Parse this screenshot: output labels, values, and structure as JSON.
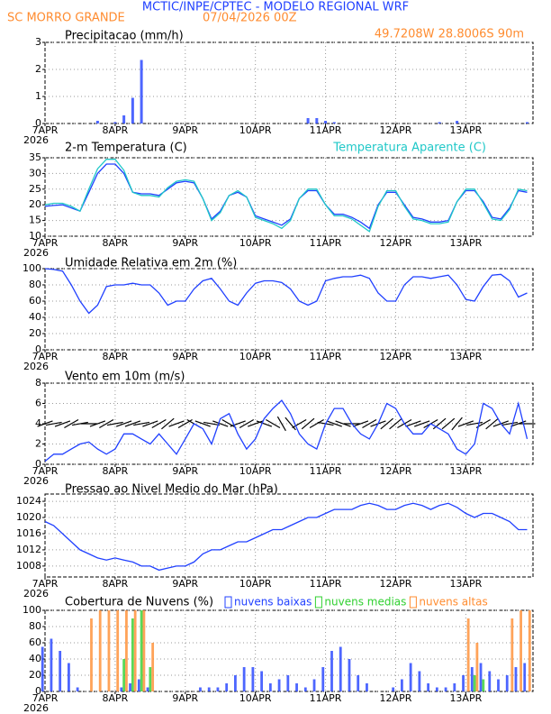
{
  "header": {
    "title": "MCTIC/INPE/CPTEC - MODELO REGIONAL WRF",
    "location": "SC MORRO GRANDE",
    "run": "07/04/2026 00Z",
    "coords": "49.7208W 28.8006S 90m"
  },
  "chart_data": [
    {
      "type": "bar",
      "title": "Precipitacao (mm/h)",
      "x_year": "2026",
      "x": [
        0,
        3,
        6,
        9,
        12,
        15,
        18,
        21,
        24,
        27,
        30,
        33,
        36,
        39,
        42,
        45,
        48,
        51,
        54,
        57,
        60,
        63,
        66,
        69,
        72,
        75,
        78,
        81,
        84,
        87,
        90,
        93,
        96,
        99,
        102,
        105,
        108,
        111,
        114,
        117,
        120,
        123,
        126,
        129,
        132,
        135,
        138,
        141,
        144,
        147,
        150,
        153,
        156,
        159,
        162,
        165
      ],
      "xlim": [
        0,
        167
      ],
      "xticks": [
        {
          "value": 0,
          "label": "7APR"
        },
        {
          "value": 24,
          "label": "8APR"
        },
        {
          "value": 48,
          "label": "9APR"
        },
        {
          "value": 72,
          "label": "10APR"
        },
        {
          "value": 96,
          "label": "11APR"
        },
        {
          "value": 120,
          "label": "12APR"
        },
        {
          "value": 144,
          "label": "13APR"
        }
      ],
      "ylim": [
        0,
        3
      ],
      "yticks": [
        0,
        1,
        2,
        3
      ],
      "grid": true,
      "series": [
        {
          "color": "#2040ff",
          "values": [
            0,
            0,
            0,
            0,
            0,
            0,
            0.1,
            0,
            0.05,
            0.3,
            0.95,
            2.35,
            0,
            0,
            0,
            0,
            0,
            0,
            0,
            0,
            0,
            0,
            0,
            0,
            0,
            0,
            0,
            0,
            0,
            0,
            0.2,
            0.2,
            0.1,
            0.05,
            0,
            0,
            0,
            0,
            0,
            0,
            0,
            0,
            0,
            0,
            0,
            0.05,
            0,
            0.1,
            0,
            0,
            0,
            0,
            0,
            0,
            0,
            0.05
          ]
        }
      ]
    },
    {
      "type": "line",
      "title": "2-m Temperatura (C)",
      "x_year": "2026",
      "x": [
        0,
        3,
        6,
        9,
        12,
        15,
        18,
        21,
        24,
        27,
        30,
        33,
        36,
        39,
        42,
        45,
        48,
        51,
        54,
        57,
        60,
        63,
        66,
        69,
        72,
        75,
        78,
        81,
        84,
        87,
        90,
        93,
        96,
        99,
        102,
        105,
        108,
        111,
        114,
        117,
        120,
        123,
        126,
        129,
        132,
        135,
        138,
        141,
        144,
        147,
        150,
        153,
        156,
        159,
        162,
        165
      ],
      "xlim": [
        0,
        167
      ],
      "xticks": [
        {
          "value": 0,
          "label": "7APR"
        },
        {
          "value": 24,
          "label": "8APR"
        },
        {
          "value": 48,
          "label": "9APR"
        },
        {
          "value": 72,
          "label": "10APR"
        },
        {
          "value": 96,
          "label": "11APR"
        },
        {
          "value": 120,
          "label": "12APR"
        },
        {
          "value": 144,
          "label": "13APR"
        }
      ],
      "ylim": [
        10,
        35
      ],
      "yticks": [
        10,
        15,
        20,
        25,
        30,
        35
      ],
      "grid": true,
      "series": [
        {
          "color": "#2040ff",
          "values": [
            19.5,
            19.8,
            20,
            19,
            18,
            24,
            30,
            33,
            33,
            30,
            24,
            23.5,
            23.5,
            23,
            25,
            27,
            27.5,
            27,
            22,
            15.5,
            18,
            23,
            24,
            22.5,
            16.5,
            15.5,
            14.5,
            13.5,
            15.5,
            22,
            24.5,
            24.5,
            20,
            17,
            17,
            16,
            14.5,
            12.5,
            20,
            24,
            24,
            20,
            16,
            15.5,
            14.5,
            14.5,
            15,
            21,
            24.5,
            24.5,
            21,
            16,
            15.5,
            19,
            24.5,
            24
          ]
        },
        {
          "name": "Temperatura Aparente (C)",
          "color": "#20c8c8",
          "values": [
            20,
            20.5,
            20.5,
            19.5,
            18,
            25,
            31.5,
            34.5,
            34.5,
            31,
            24,
            23,
            23,
            22.5,
            25.5,
            27.5,
            28,
            27.5,
            22,
            15,
            17.5,
            23,
            24.5,
            22.5,
            16,
            15,
            14,
            12.5,
            15,
            22,
            25,
            25,
            20,
            16.5,
            16.5,
            15.5,
            13.5,
            11.5,
            19.5,
            24.5,
            24.5,
            19.5,
            15.5,
            15,
            14,
            14,
            14.5,
            21,
            25,
            25,
            20.5,
            15.5,
            15,
            18.5,
            25,
            24.5
          ]
        }
      ]
    },
    {
      "type": "line",
      "title": "Umidade Relativa em 2m (%)",
      "x_year": "2026",
      "x": [
        0,
        3,
        6,
        9,
        12,
        15,
        18,
        21,
        24,
        27,
        30,
        33,
        36,
        39,
        42,
        45,
        48,
        51,
        54,
        57,
        60,
        63,
        66,
        69,
        72,
        75,
        78,
        81,
        84,
        87,
        90,
        93,
        96,
        99,
        102,
        105,
        108,
        111,
        114,
        117,
        120,
        123,
        126,
        129,
        132,
        135,
        138,
        141,
        144,
        147,
        150,
        153,
        156,
        159,
        162,
        165
      ],
      "xlim": [
        0,
        167
      ],
      "xticks": [
        {
          "value": 0,
          "label": "7APR"
        },
        {
          "value": 24,
          "label": "8APR"
        },
        {
          "value": 48,
          "label": "9APR"
        },
        {
          "value": 72,
          "label": "10APR"
        },
        {
          "value": 96,
          "label": "11APR"
        },
        {
          "value": 120,
          "label": "12APR"
        },
        {
          "value": 144,
          "label": "13APR"
        }
      ],
      "ylim": [
        0,
        100
      ],
      "yticks": [
        0,
        20,
        40,
        60,
        80,
        100
      ],
      "grid": true,
      "series": [
        {
          "color": "#2040ff",
          "values": [
            100,
            99,
            97,
            80,
            60,
            45,
            55,
            78,
            80,
            80,
            82,
            80,
            80,
            70,
            55,
            60,
            60,
            75,
            85,
            88,
            75,
            60,
            55,
            70,
            82,
            85,
            85,
            83,
            75,
            60,
            55,
            60,
            85,
            88,
            90,
            90,
            92,
            88,
            70,
            60,
            60,
            80,
            90,
            90,
            88,
            90,
            92,
            80,
            62,
            60,
            78,
            92,
            93,
            85,
            65,
            70
          ]
        }
      ]
    },
    {
      "type": "wind",
      "title": "Vento em 10m (m/s)",
      "x_year": "2026",
      "x": [
        0,
        3,
        6,
        9,
        12,
        15,
        18,
        21,
        24,
        27,
        30,
        33,
        36,
        39,
        42,
        45,
        48,
        51,
        54,
        57,
        60,
        63,
        66,
        69,
        72,
        75,
        78,
        81,
        84,
        87,
        90,
        93,
        96,
        99,
        102,
        105,
        108,
        111,
        114,
        117,
        120,
        123,
        126,
        129,
        132,
        135,
        138,
        141,
        144,
        147,
        150,
        153,
        156,
        159,
        162,
        165
      ],
      "xlim": [
        0,
        167
      ],
      "xticks": [
        {
          "value": 0,
          "label": "7APR"
        },
        {
          "value": 24,
          "label": "8APR"
        },
        {
          "value": 48,
          "label": "9APR"
        },
        {
          "value": 72,
          "label": "10APR"
        },
        {
          "value": 96,
          "label": "11APR"
        },
        {
          "value": 120,
          "label": "12APR"
        },
        {
          "value": 144,
          "label": "13APR"
        }
      ],
      "ylim": [
        0,
        8
      ],
      "yticks": [
        0,
        2,
        4,
        6,
        8
      ],
      "grid": true,
      "arrow_level": 4,
      "directions": [
        200,
        190,
        200,
        210,
        190,
        180,
        200,
        210,
        190,
        200,
        200,
        190,
        200,
        210,
        220,
        200,
        210,
        150,
        160,
        170,
        160,
        150,
        200,
        210,
        200,
        160,
        150,
        120,
        130,
        210,
        220,
        210,
        170,
        160,
        160,
        180,
        200,
        210,
        200,
        220,
        220,
        210,
        200,
        200,
        210,
        220,
        220,
        230,
        200,
        190,
        210,
        220,
        200,
        190,
        200,
        180
      ],
      "series": [
        {
          "color": "#2040ff",
          "values": [
            0.3,
            1,
            1,
            1.5,
            2,
            2.2,
            1.5,
            1,
            1.5,
            3,
            3,
            2.5,
            2,
            3,
            2,
            1,
            2.5,
            4,
            3.5,
            2,
            4.5,
            5,
            3,
            1.5,
            2.5,
            4.5,
            5.5,
            6.3,
            5,
            3,
            2,
            1.5,
            4,
            5.5,
            5.5,
            4,
            3,
            2.5,
            4,
            6,
            5.5,
            4,
            3,
            3,
            4,
            3.5,
            3,
            1.5,
            1,
            2,
            6,
            5.5,
            4,
            3,
            6,
            2.5
          ]
        }
      ]
    },
    {
      "type": "line",
      "title": "Pressao ao Nivel Medio do Mar (hPa)",
      "x_year": "2026",
      "x": [
        0,
        3,
        6,
        9,
        12,
        15,
        18,
        21,
        24,
        27,
        30,
        33,
        36,
        39,
        42,
        45,
        48,
        51,
        54,
        57,
        60,
        63,
        66,
        69,
        72,
        75,
        78,
        81,
        84,
        87,
        90,
        93,
        96,
        99,
        102,
        105,
        108,
        111,
        114,
        117,
        120,
        123,
        126,
        129,
        132,
        135,
        138,
        141,
        144,
        147,
        150,
        153,
        156,
        159,
        162,
        165
      ],
      "xlim": [
        0,
        167
      ],
      "xticks": [
        {
          "value": 0,
          "label": "7APR"
        },
        {
          "value": 24,
          "label": "8APR"
        },
        {
          "value": 48,
          "label": "9APR"
        },
        {
          "value": 72,
          "label": "10APR"
        },
        {
          "value": 96,
          "label": "11APR"
        },
        {
          "value": 120,
          "label": "12APR"
        },
        {
          "value": 144,
          "label": "13APR"
        }
      ],
      "ylim": [
        1005.3,
        1025.8
      ],
      "yticks": [
        1008,
        1012,
        1016,
        1020,
        1024
      ],
      "grid": true,
      "series": [
        {
          "color": "#2040ff",
          "values": [
            1019,
            1018,
            1016,
            1014,
            1012,
            1011,
            1010,
            1009.5,
            1010,
            1009.5,
            1009,
            1008,
            1008,
            1007,
            1007.5,
            1008,
            1008,
            1009,
            1011,
            1012,
            1012,
            1013,
            1014,
            1014,
            1015,
            1016,
            1017,
            1017,
            1018,
            1019,
            1020,
            1020,
            1021,
            1022,
            1022,
            1022,
            1023,
            1023.5,
            1023,
            1022,
            1022,
            1023,
            1023.5,
            1023,
            1022,
            1023,
            1023.5,
            1022.5,
            1021,
            1020,
            1021,
            1021,
            1020,
            1019,
            1017,
            1017
          ]
        }
      ]
    },
    {
      "type": "bar",
      "title": "Cobertura de Nuvens (%)",
      "x_year": "2026",
      "x": [
        0,
        3,
        6,
        9,
        12,
        15,
        18,
        21,
        24,
        27,
        30,
        33,
        36,
        39,
        42,
        45,
        48,
        51,
        54,
        57,
        60,
        63,
        66,
        69,
        72,
        75,
        78,
        81,
        84,
        87,
        90,
        93,
        96,
        99,
        102,
        105,
        108,
        111,
        114,
        117,
        120,
        123,
        126,
        129,
        132,
        135,
        138,
        141,
        144,
        147,
        150,
        153,
        156,
        159,
        162,
        165
      ],
      "xlim": [
        0,
        167
      ],
      "xticks": [
        {
          "value": 0,
          "label": "7APR"
        },
        {
          "value": 24,
          "label": "8APR"
        },
        {
          "value": 48,
          "label": "9APR"
        },
        {
          "value": 72,
          "label": "10APR"
        },
        {
          "value": 96,
          "label": "11APR"
        },
        {
          "value": 120,
          "label": "12APR"
        },
        {
          "value": 144,
          "label": "13APR"
        }
      ],
      "ylim": [
        0,
        100
      ],
      "yticks": [
        0,
        20,
        40,
        60,
        80,
        100
      ],
      "grid": true,
      "series": [
        {
          "name": "nuvens baixas",
          "color": "#2040ff",
          "values": [
            55,
            65,
            50,
            35,
            5,
            0,
            0,
            0,
            0,
            5,
            10,
            15,
            5,
            0,
            0,
            0,
            0,
            0,
            5,
            5,
            5,
            10,
            20,
            30,
            30,
            25,
            10,
            15,
            20,
            10,
            5,
            15,
            30,
            50,
            55,
            40,
            20,
            10,
            0,
            0,
            5,
            15,
            35,
            25,
            10,
            5,
            5,
            10,
            20,
            30,
            35,
            25,
            15,
            20,
            30,
            35
          ]
        },
        {
          "name": "nuvens medias",
          "color": "#30d030",
          "values": [
            0,
            0,
            0,
            0,
            0,
            0,
            0,
            0,
            0,
            40,
            90,
            100,
            30,
            0,
            0,
            0,
            0,
            0,
            0,
            0,
            0,
            0,
            0,
            0,
            0,
            0,
            0,
            0,
            0,
            0,
            0,
            0,
            0,
            0,
            0,
            0,
            0,
            0,
            0,
            0,
            0,
            0,
            0,
            0,
            0,
            0,
            0,
            0,
            0,
            20,
            15,
            0,
            0,
            0,
            0,
            0
          ]
        },
        {
          "name": "nuvens altas",
          "color": "#ff8c30",
          "values": [
            0,
            0,
            0,
            0,
            0,
            90,
            100,
            100,
            100,
            100,
            100,
            100,
            60,
            0,
            0,
            0,
            0,
            0,
            0,
            0,
            0,
            0,
            0,
            0,
            0,
            0,
            0,
            0,
            0,
            0,
            0,
            0,
            0,
            0,
            0,
            0,
            0,
            0,
            0,
            0,
            0,
            0,
            0,
            0,
            0,
            0,
            0,
            0,
            90,
            60,
            0,
            0,
            0,
            90,
            100,
            100
          ]
        }
      ]
    }
  ]
}
